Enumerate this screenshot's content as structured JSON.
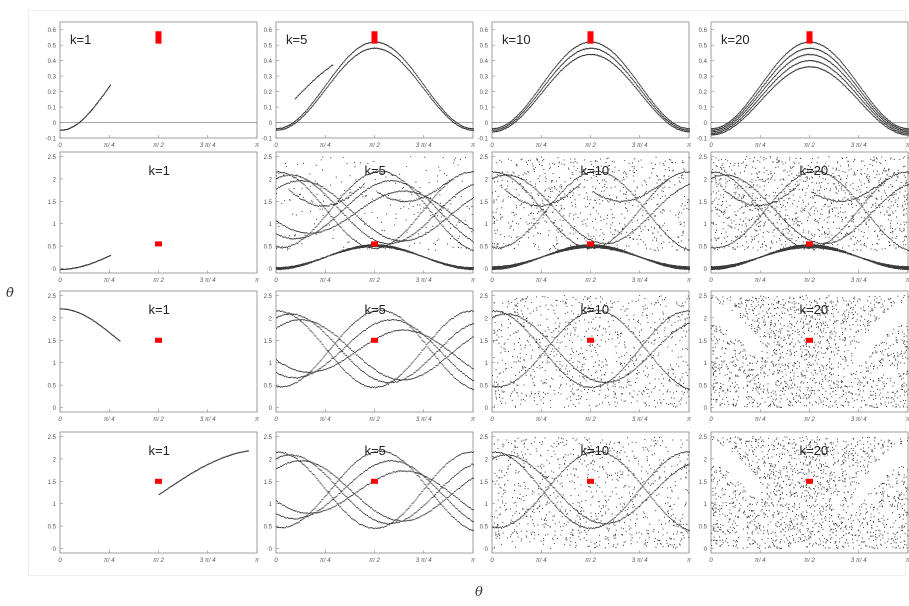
{
  "figure": {
    "ylabel": "θ̇",
    "xlabel": "θ"
  },
  "colors": {
    "points": "#3a3a3a",
    "marker": "#ff0000",
    "axis": "#888888",
    "zero_line": "#777777"
  },
  "panel_titles": [
    "k=1",
    "k=5",
    "k=10",
    "k=20"
  ],
  "x_ticks": [
    "0",
    "π/ 4",
    "π/ 2",
    "3 π/ 4",
    "π"
  ],
  "row_y_ticks": [
    [
      "0.6",
      "0.5",
      "0.4",
      "0.3",
      "0.2",
      "0.1",
      "0",
      "-0.1"
    ],
    [
      "2.5",
      "2",
      "1.5",
      "1",
      "0.5",
      "0"
    ],
    [
      "2.5",
      "2",
      "1.5",
      "1",
      "0.5",
      "0"
    ],
    [
      "2.5",
      "2",
      "1.5",
      "1",
      "0.5",
      "0"
    ]
  ],
  "chart_data": [
    {
      "type": "scatter",
      "row": 1,
      "k": 1,
      "title": "k=1",
      "xlim": [
        0,
        3.1416
      ],
      "ylim": [
        -0.1,
        0.65
      ],
      "marker": {
        "x": 1.5708,
        "y": 0.55,
        "height": 0.08
      },
      "curve": "partial-arc",
      "color": "#3a3a3a"
    },
    {
      "type": "scatter",
      "row": 1,
      "k": 5,
      "title": "k=5",
      "xlim": [
        0,
        3.1416
      ],
      "ylim": [
        -0.1,
        0.65
      ],
      "marker": {
        "x": 1.5708,
        "y": 0.55,
        "height": 0.08
      },
      "curve": "bands",
      "color": "#3a3a3a"
    },
    {
      "type": "scatter",
      "row": 1,
      "k": 10,
      "title": "k=10",
      "xlim": [
        0,
        3.1416
      ],
      "ylim": [
        -0.1,
        0.65
      ],
      "marker": {
        "x": 1.5708,
        "y": 0.55,
        "height": 0.08
      },
      "curve": "bands",
      "color": "#3a3a3a"
    },
    {
      "type": "scatter",
      "row": 1,
      "k": 20,
      "title": "k=20",
      "xlim": [
        0,
        3.1416
      ],
      "ylim": [
        -0.1,
        0.65
      ],
      "marker": {
        "x": 1.5708,
        "y": 0.55,
        "height": 0.08
      },
      "curve": "bands",
      "color": "#3a3a3a"
    },
    {
      "type": "scatter",
      "row": 2,
      "k": 1,
      "title": "k=1",
      "xlim": [
        0,
        3.1416
      ],
      "ylim": [
        -0.1,
        2.6
      ],
      "marker": {
        "x": 1.5708,
        "y": 0.55
      },
      "curve": "partial-arc"
    },
    {
      "type": "scatter",
      "row": 2,
      "k": 5,
      "title": "k=5",
      "xlim": [
        0,
        3.1416
      ],
      "ylim": [
        -0.1,
        2.6
      ],
      "marker": {
        "x": 1.5708,
        "y": 0.55
      },
      "curve": "bands+chaos"
    },
    {
      "type": "scatter",
      "row": 2,
      "k": 10,
      "title": "k=10",
      "xlim": [
        0,
        3.1416
      ],
      "ylim": [
        -0.1,
        2.6
      ],
      "marker": {
        "x": 1.5708,
        "y": 0.55
      },
      "curve": "bands+chaos"
    },
    {
      "type": "scatter",
      "row": 2,
      "k": 20,
      "title": "k=20",
      "xlim": [
        0,
        3.1416
      ],
      "ylim": [
        -0.1,
        2.6
      ],
      "marker": {
        "x": 1.5708,
        "y": 0.55
      },
      "curve": "bands+chaos"
    },
    {
      "type": "scatter",
      "row": 3,
      "k": 1,
      "title": "k=1",
      "xlim": [
        0,
        3.1416
      ],
      "ylim": [
        -0.1,
        2.6
      ],
      "marker": {
        "x": 1.5708,
        "y": 1.5
      },
      "curve": "partial-arc"
    },
    {
      "type": "scatter",
      "row": 3,
      "k": 5,
      "title": "k=5",
      "xlim": [
        0,
        3.1416
      ],
      "ylim": [
        -0.1,
        2.6
      ],
      "marker": {
        "x": 1.5708,
        "y": 1.5
      },
      "curve": "swirl"
    },
    {
      "type": "scatter",
      "row": 3,
      "k": 10,
      "title": "k=10",
      "xlim": [
        0,
        3.1416
      ],
      "ylim": [
        -0.1,
        2.6
      ],
      "marker": {
        "x": 1.5708,
        "y": 1.5
      },
      "curve": "swirl+chaos"
    },
    {
      "type": "scatter",
      "row": 3,
      "k": 20,
      "title": "k=20",
      "xlim": [
        0,
        3.1416
      ],
      "ylim": [
        -0.1,
        2.6
      ],
      "marker": {
        "x": 1.5708,
        "y": 1.5
      },
      "curve": "chaos"
    },
    {
      "type": "scatter",
      "row": 4,
      "k": 1,
      "title": "k=1",
      "xlim": [
        0,
        3.1416
      ],
      "ylim": [
        -0.1,
        2.6
      ],
      "marker": {
        "x": 1.5708,
        "y": 1.5
      },
      "curve": "partial-arc"
    },
    {
      "type": "scatter",
      "row": 4,
      "k": 5,
      "title": "k=5",
      "xlim": [
        0,
        3.1416
      ],
      "ylim": [
        -0.1,
        2.6
      ],
      "marker": {
        "x": 1.5708,
        "y": 1.5
      },
      "curve": "swirl"
    },
    {
      "type": "scatter",
      "row": 4,
      "k": 10,
      "title": "k=10",
      "xlim": [
        0,
        3.1416
      ],
      "ylim": [
        -0.1,
        2.6
      ],
      "marker": {
        "x": 1.5708,
        "y": 1.5
      },
      "curve": "swirl+chaos"
    },
    {
      "type": "scatter",
      "row": 4,
      "k": 20,
      "title": "k=20",
      "xlim": [
        0,
        3.1416
      ],
      "ylim": [
        -0.1,
        2.6
      ],
      "marker": {
        "x": 1.5708,
        "y": 1.5
      },
      "curve": "chaos"
    }
  ]
}
